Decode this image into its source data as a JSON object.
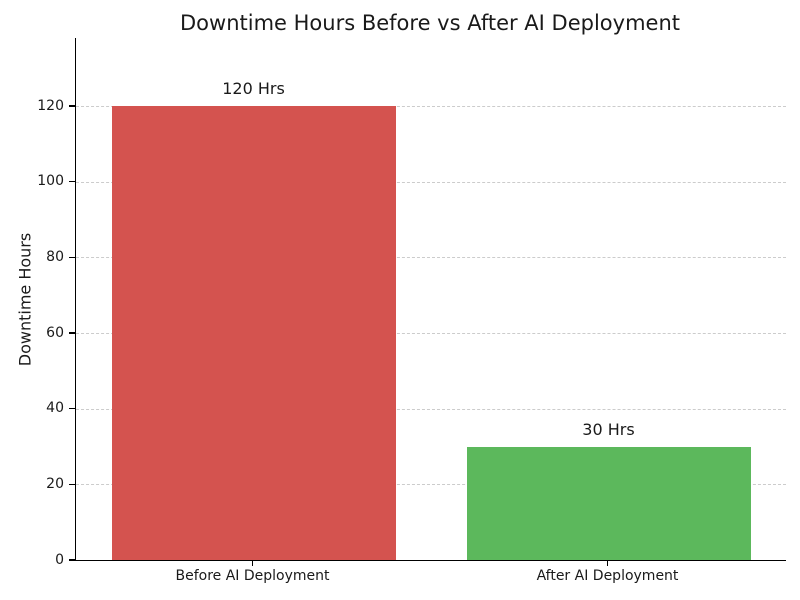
{
  "chart_data": {
    "type": "bar",
    "title": "Downtime Hours Before vs After AI Deployment",
    "xlabel": "",
    "ylabel": "Downtime Hours",
    "categories": [
      "Before AI Deployment",
      "After AI Deployment"
    ],
    "values": [
      120,
      30
    ],
    "bar_labels": [
      "120 Hrs",
      "30 Hrs"
    ],
    "bar_colors": [
      "#d4534f",
      "#5cb85c"
    ],
    "yticks": [
      0,
      20,
      40,
      60,
      80,
      100,
      120
    ],
    "ylim": [
      0,
      138
    ],
    "bar_width_ratio": 0.8,
    "grid": "horizontal-dashed",
    "legend_position": "none"
  },
  "style": {
    "grid_color": "#cccccc",
    "axis_color": "#000000",
    "text_color": "#1a1a1a",
    "background_color": "#ffffff"
  }
}
